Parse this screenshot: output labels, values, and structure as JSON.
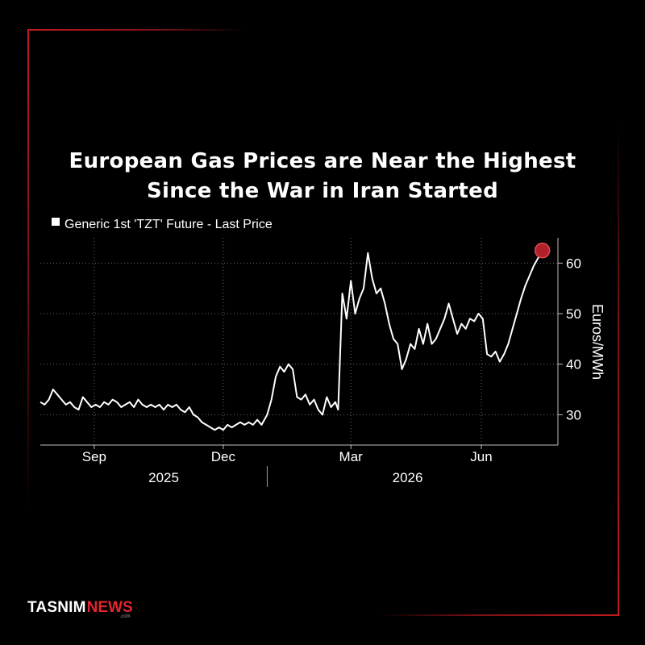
{
  "chart_data": {
    "type": "line",
    "title": "European Gas Prices are Near the Highest",
    "subtitle": "Since the War in Iran Started",
    "legend": "Generic 1st 'TZT' Future - Last Price",
    "legend_placement": "top-left",
    "ylabel": "Euros/MWh",
    "y_ticks": [
      30,
      40,
      50,
      60
    ],
    "ylim": [
      24,
      65
    ],
    "grid": true,
    "x_range": [
      "2025-07-25",
      "2026-07-25"
    ],
    "x_ticks": [
      {
        "date": "2025-09-01",
        "label": "Sep"
      },
      {
        "date": "2025-12-01",
        "label": "Dec"
      },
      {
        "date": "2026-03-01",
        "label": "Mar"
      },
      {
        "date": "2026-06-01",
        "label": "Jun"
      }
    ],
    "x_years": [
      {
        "date": "2025-10-20",
        "label": "2025"
      },
      {
        "date": "2026-04-10",
        "label": "2026"
      }
    ],
    "year_divider": "2026-01-01",
    "highlight": {
      "date": "2026-07-14",
      "value": 62.5,
      "color": "#b0202a"
    },
    "series": [
      {
        "color": "#ffffff",
        "points": [
          [
            "2025-07-25",
            32.5
          ],
          [
            "2025-07-28",
            32.0
          ],
          [
            "2025-07-31",
            33.0
          ],
          [
            "2025-08-03",
            35.0
          ],
          [
            "2025-08-06",
            34.0
          ],
          [
            "2025-08-09",
            33.0
          ],
          [
            "2025-08-12",
            32.0
          ],
          [
            "2025-08-15",
            32.5
          ],
          [
            "2025-08-18",
            31.5
          ],
          [
            "2025-08-21",
            31.0
          ],
          [
            "2025-08-24",
            33.5
          ],
          [
            "2025-08-27",
            32.5
          ],
          [
            "2025-08-30",
            31.5
          ],
          [
            "2025-09-02",
            32.0
          ],
          [
            "2025-09-05",
            31.5
          ],
          [
            "2025-09-08",
            32.5
          ],
          [
            "2025-09-11",
            32.0
          ],
          [
            "2025-09-14",
            33.0
          ],
          [
            "2025-09-17",
            32.5
          ],
          [
            "2025-09-20",
            31.5
          ],
          [
            "2025-09-23",
            32.0
          ],
          [
            "2025-09-26",
            32.5
          ],
          [
            "2025-09-29",
            31.5
          ],
          [
            "2025-10-02",
            33.0
          ],
          [
            "2025-10-05",
            32.0
          ],
          [
            "2025-10-08",
            31.5
          ],
          [
            "2025-10-11",
            32.0
          ],
          [
            "2025-10-14",
            31.5
          ],
          [
            "2025-10-17",
            32.0
          ],
          [
            "2025-10-20",
            31.0
          ],
          [
            "2025-10-23",
            32.0
          ],
          [
            "2025-10-26",
            31.5
          ],
          [
            "2025-10-29",
            32.0
          ],
          [
            "2025-11-01",
            31.0
          ],
          [
            "2025-11-04",
            30.5
          ],
          [
            "2025-11-07",
            31.5
          ],
          [
            "2025-11-10",
            30.0
          ],
          [
            "2025-11-13",
            29.5
          ],
          [
            "2025-11-16",
            28.5
          ],
          [
            "2025-11-19",
            28.0
          ],
          [
            "2025-11-22",
            27.5
          ],
          [
            "2025-11-25",
            27.0
          ],
          [
            "2025-11-28",
            27.5
          ],
          [
            "2025-12-01",
            27.0
          ],
          [
            "2025-12-04",
            28.0
          ],
          [
            "2025-12-07",
            27.5
          ],
          [
            "2025-12-10",
            28.0
          ],
          [
            "2025-12-13",
            28.5
          ],
          [
            "2025-12-16",
            28.0
          ],
          [
            "2025-12-19",
            28.5
          ],
          [
            "2025-12-22",
            28.0
          ],
          [
            "2025-12-25",
            29.0
          ],
          [
            "2025-12-28",
            28.0
          ],
          [
            "2026-01-01",
            30.0
          ],
          [
            "2026-01-04",
            33.0
          ],
          [
            "2026-01-07",
            37.5
          ],
          [
            "2026-01-10",
            39.5
          ],
          [
            "2026-01-13",
            38.5
          ],
          [
            "2026-01-16",
            40.0
          ],
          [
            "2026-01-19",
            39.0
          ],
          [
            "2026-01-22",
            33.5
          ],
          [
            "2026-01-25",
            33.0
          ],
          [
            "2026-01-28",
            34.0
          ],
          [
            "2026-01-31",
            32.0
          ],
          [
            "2026-02-03",
            33.0
          ],
          [
            "2026-02-06",
            31.0
          ],
          [
            "2026-02-09",
            30.0
          ],
          [
            "2026-02-12",
            33.5
          ],
          [
            "2026-02-15",
            31.5
          ],
          [
            "2026-02-18",
            32.5
          ],
          [
            "2026-02-20",
            31.0
          ],
          [
            "2026-02-23",
            54.0
          ],
          [
            "2026-02-26",
            49.0
          ],
          [
            "2026-03-01",
            56.5
          ],
          [
            "2026-03-04",
            50.0
          ],
          [
            "2026-03-07",
            53.0
          ],
          [
            "2026-03-10",
            55.0
          ],
          [
            "2026-03-13",
            62.0
          ],
          [
            "2026-03-16",
            57.0
          ],
          [
            "2026-03-19",
            54.0
          ],
          [
            "2026-03-22",
            55.0
          ],
          [
            "2026-03-25",
            52.0
          ],
          [
            "2026-03-28",
            48.0
          ],
          [
            "2026-03-31",
            45.0
          ],
          [
            "2026-04-03",
            44.0
          ],
          [
            "2026-04-06",
            39.0
          ],
          [
            "2026-04-09",
            41.0
          ],
          [
            "2026-04-12",
            44.0
          ],
          [
            "2026-04-15",
            43.0
          ],
          [
            "2026-04-18",
            47.0
          ],
          [
            "2026-04-21",
            44.0
          ],
          [
            "2026-04-24",
            48.0
          ],
          [
            "2026-04-27",
            44.0
          ],
          [
            "2026-04-30",
            45.0
          ],
          [
            "2026-05-03",
            47.0
          ],
          [
            "2026-05-06",
            49.0
          ],
          [
            "2026-05-09",
            52.0
          ],
          [
            "2026-05-12",
            49.0
          ],
          [
            "2026-05-15",
            46.0
          ],
          [
            "2026-05-18",
            48.0
          ],
          [
            "2026-05-21",
            47.0
          ],
          [
            "2026-05-24",
            49.0
          ],
          [
            "2026-05-27",
            48.5
          ],
          [
            "2026-05-30",
            50.0
          ],
          [
            "2026-06-02",
            49.0
          ],
          [
            "2026-06-05",
            42.0
          ],
          [
            "2026-06-08",
            41.5
          ],
          [
            "2026-06-11",
            42.5
          ],
          [
            "2026-06-14",
            40.5
          ],
          [
            "2026-06-17",
            42.0
          ],
          [
            "2026-06-20",
            44.0
          ],
          [
            "2026-06-23",
            47.0
          ],
          [
            "2026-06-26",
            50.0
          ],
          [
            "2026-06-29",
            53.0
          ],
          [
            "2026-07-02",
            55.5
          ],
          [
            "2026-07-05",
            57.5
          ],
          [
            "2026-07-08",
            59.5
          ],
          [
            "2026-07-11",
            61.0
          ],
          [
            "2026-07-14",
            62.5
          ]
        ]
      }
    ]
  },
  "brand": {
    "name": "TASNIM",
    "news": "NEWS",
    "domain": ".com",
    "accent_color": "#e3262e",
    "frame_color": "#c41a22"
  }
}
